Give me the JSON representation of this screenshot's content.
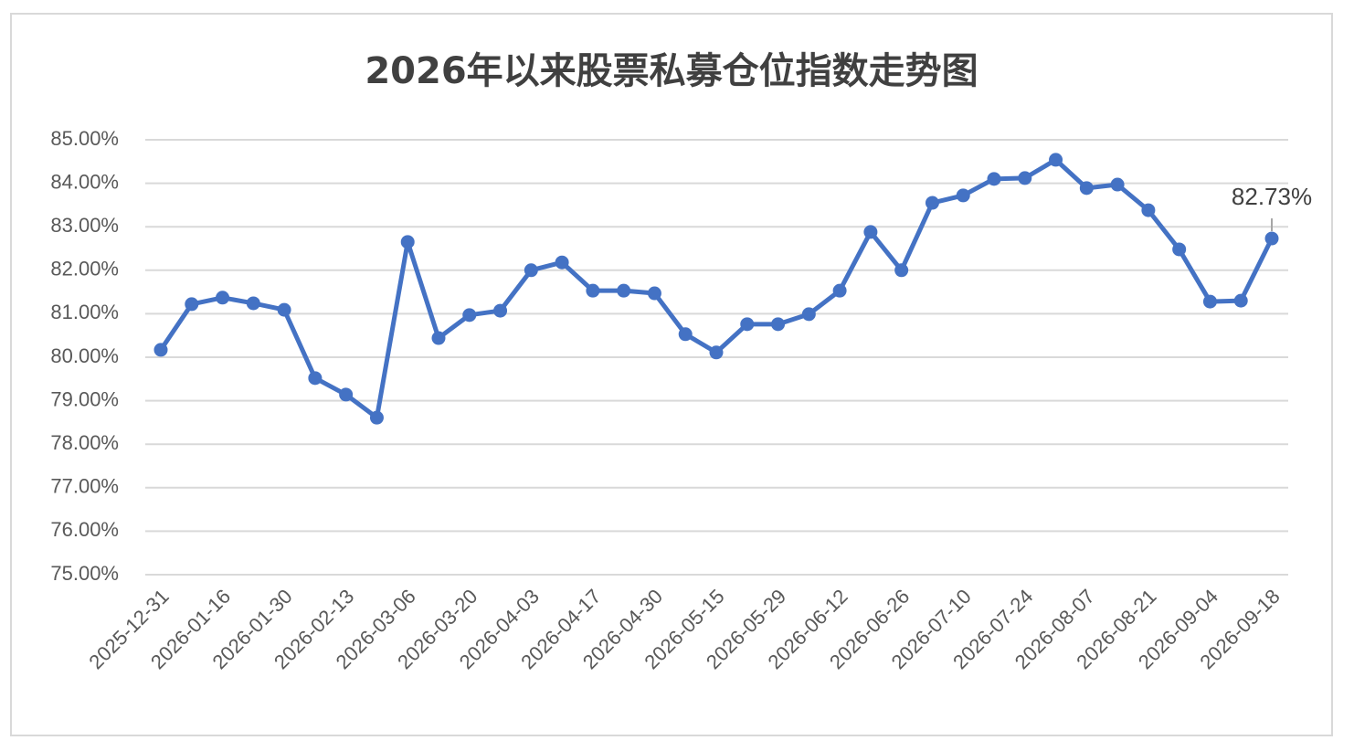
{
  "chart_data": {
    "type": "line",
    "title": "2026年以来股票私募仓位指数走势图",
    "categories": [
      "2025-12-31",
      null,
      "2026-01-16",
      null,
      "2026-01-30",
      null,
      "2026-02-13",
      null,
      "2026-03-06",
      null,
      "2026-03-20",
      null,
      "2026-04-03",
      null,
      "2026-04-17",
      null,
      "2026-04-30",
      null,
      "2026-05-15",
      null,
      "2026-05-29",
      null,
      "2026-06-12",
      null,
      "2026-06-26",
      null,
      "2026-07-10",
      null,
      "2026-07-24",
      null,
      "2026-08-07",
      null,
      "2026-08-21",
      null,
      "2026-09-04",
      null,
      "2026-09-18"
    ],
    "series": [
      {
        "color": "#4472c4",
        "values": [
          80.17,
          81.22,
          81.37,
          81.24,
          81.09,
          79.52,
          79.14,
          78.61,
          82.65,
          80.44,
          80.97,
          81.07,
          82.0,
          82.18,
          81.53,
          81.53,
          81.47,
          80.53,
          80.11,
          80.76,
          80.76,
          80.99,
          81.53,
          82.88,
          82.0,
          83.55,
          83.72,
          84.1,
          84.12,
          84.54,
          83.89,
          83.97,
          83.38,
          82.48,
          81.28,
          81.3,
          82.73
        ],
        "value_labels": [
          null,
          null,
          null,
          null,
          null,
          null,
          null,
          null,
          null,
          null,
          null,
          null,
          null,
          null,
          null,
          null,
          null,
          null,
          null,
          null,
          null,
          null,
          null,
          null,
          null,
          null,
          null,
          null,
          null,
          null,
          null,
          null,
          null,
          null,
          null,
          null,
          "82.73%"
        ]
      }
    ],
    "ylim": [
      75,
      85
    ],
    "yticks": [
      {
        "value": 75,
        "label": "75.00%"
      },
      {
        "value": 76,
        "label": "76.00%"
      },
      {
        "value": 77,
        "label": "77.00%"
      },
      {
        "value": 78,
        "label": "78.00%"
      },
      {
        "value": 79,
        "label": "79.00%"
      },
      {
        "value": 80,
        "label": "80.00%"
      },
      {
        "value": 81,
        "label": "81.00%"
      },
      {
        "value": 82,
        "label": "82.00%"
      },
      {
        "value": 83,
        "label": "83.00%"
      },
      {
        "value": 84,
        "label": "84.00%"
      },
      {
        "value": 85,
        "label": "85.00%"
      }
    ],
    "grid": true
  }
}
